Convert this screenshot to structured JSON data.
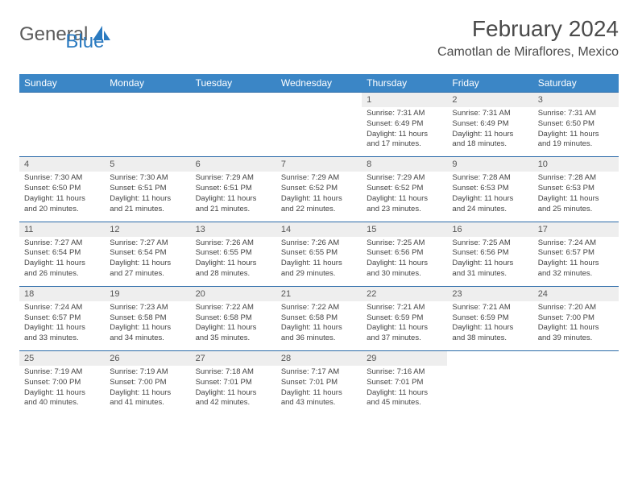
{
  "brand": {
    "part1": "General",
    "part2": "Blue"
  },
  "title": "February 2024",
  "location": "Camotlan de Miraflores, Mexico",
  "colors": {
    "header_bg": "#3b86c6",
    "header_text": "#ffffff",
    "daynum_bg": "#eeeeee",
    "row_border": "#2a6aa8",
    "text": "#444444"
  },
  "day_labels": [
    "Sunday",
    "Monday",
    "Tuesday",
    "Wednesday",
    "Thursday",
    "Friday",
    "Saturday"
  ],
  "weeks": [
    [
      null,
      null,
      null,
      null,
      {
        "n": "1",
        "sr": "7:31 AM",
        "ss": "6:49 PM",
        "dl": "11 hours and 17 minutes."
      },
      {
        "n": "2",
        "sr": "7:31 AM",
        "ss": "6:49 PM",
        "dl": "11 hours and 18 minutes."
      },
      {
        "n": "3",
        "sr": "7:31 AM",
        "ss": "6:50 PM",
        "dl": "11 hours and 19 minutes."
      }
    ],
    [
      {
        "n": "4",
        "sr": "7:30 AM",
        "ss": "6:50 PM",
        "dl": "11 hours and 20 minutes."
      },
      {
        "n": "5",
        "sr": "7:30 AM",
        "ss": "6:51 PM",
        "dl": "11 hours and 21 minutes."
      },
      {
        "n": "6",
        "sr": "7:29 AM",
        "ss": "6:51 PM",
        "dl": "11 hours and 21 minutes."
      },
      {
        "n": "7",
        "sr": "7:29 AM",
        "ss": "6:52 PM",
        "dl": "11 hours and 22 minutes."
      },
      {
        "n": "8",
        "sr": "7:29 AM",
        "ss": "6:52 PM",
        "dl": "11 hours and 23 minutes."
      },
      {
        "n": "9",
        "sr": "7:28 AM",
        "ss": "6:53 PM",
        "dl": "11 hours and 24 minutes."
      },
      {
        "n": "10",
        "sr": "7:28 AM",
        "ss": "6:53 PM",
        "dl": "11 hours and 25 minutes."
      }
    ],
    [
      {
        "n": "11",
        "sr": "7:27 AM",
        "ss": "6:54 PM",
        "dl": "11 hours and 26 minutes."
      },
      {
        "n": "12",
        "sr": "7:27 AM",
        "ss": "6:54 PM",
        "dl": "11 hours and 27 minutes."
      },
      {
        "n": "13",
        "sr": "7:26 AM",
        "ss": "6:55 PM",
        "dl": "11 hours and 28 minutes."
      },
      {
        "n": "14",
        "sr": "7:26 AM",
        "ss": "6:55 PM",
        "dl": "11 hours and 29 minutes."
      },
      {
        "n": "15",
        "sr": "7:25 AM",
        "ss": "6:56 PM",
        "dl": "11 hours and 30 minutes."
      },
      {
        "n": "16",
        "sr": "7:25 AM",
        "ss": "6:56 PM",
        "dl": "11 hours and 31 minutes."
      },
      {
        "n": "17",
        "sr": "7:24 AM",
        "ss": "6:57 PM",
        "dl": "11 hours and 32 minutes."
      }
    ],
    [
      {
        "n": "18",
        "sr": "7:24 AM",
        "ss": "6:57 PM",
        "dl": "11 hours and 33 minutes."
      },
      {
        "n": "19",
        "sr": "7:23 AM",
        "ss": "6:58 PM",
        "dl": "11 hours and 34 minutes."
      },
      {
        "n": "20",
        "sr": "7:22 AM",
        "ss": "6:58 PM",
        "dl": "11 hours and 35 minutes."
      },
      {
        "n": "21",
        "sr": "7:22 AM",
        "ss": "6:58 PM",
        "dl": "11 hours and 36 minutes."
      },
      {
        "n": "22",
        "sr": "7:21 AM",
        "ss": "6:59 PM",
        "dl": "11 hours and 37 minutes."
      },
      {
        "n": "23",
        "sr": "7:21 AM",
        "ss": "6:59 PM",
        "dl": "11 hours and 38 minutes."
      },
      {
        "n": "24",
        "sr": "7:20 AM",
        "ss": "7:00 PM",
        "dl": "11 hours and 39 minutes."
      }
    ],
    [
      {
        "n": "25",
        "sr": "7:19 AM",
        "ss": "7:00 PM",
        "dl": "11 hours and 40 minutes."
      },
      {
        "n": "26",
        "sr": "7:19 AM",
        "ss": "7:00 PM",
        "dl": "11 hours and 41 minutes."
      },
      {
        "n": "27",
        "sr": "7:18 AM",
        "ss": "7:01 PM",
        "dl": "11 hours and 42 minutes."
      },
      {
        "n": "28",
        "sr": "7:17 AM",
        "ss": "7:01 PM",
        "dl": "11 hours and 43 minutes."
      },
      {
        "n": "29",
        "sr": "7:16 AM",
        "ss": "7:01 PM",
        "dl": "11 hours and 45 minutes."
      },
      null,
      null
    ]
  ],
  "labels": {
    "sunrise": "Sunrise: ",
    "sunset": "Sunset: ",
    "daylight": "Daylight: "
  }
}
